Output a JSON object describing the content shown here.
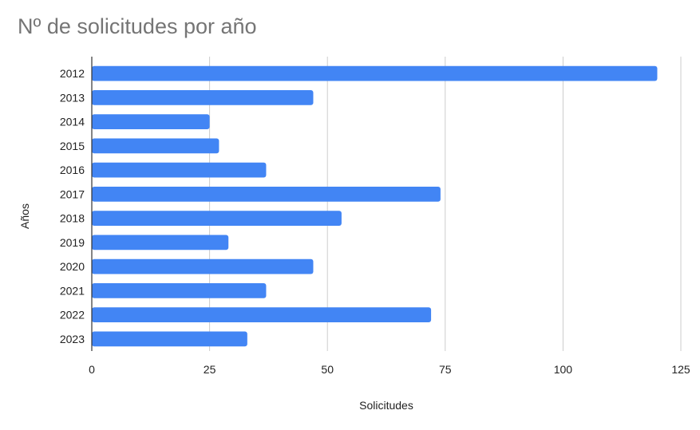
{
  "chart_data": {
    "type": "bar",
    "orientation": "horizontal",
    "title": "Nº de solicitudes por año",
    "xlabel": "Solicitudes",
    "ylabel": "Años",
    "categories": [
      "2012",
      "2013",
      "2014",
      "2015",
      "2016",
      "2017",
      "2018",
      "2019",
      "2020",
      "2021",
      "2022",
      "2023"
    ],
    "values": [
      120,
      47,
      25,
      27,
      37,
      74,
      53,
      29,
      47,
      37,
      72,
      33
    ],
    "xlim": [
      0,
      125
    ],
    "xticks": [
      0,
      25,
      50,
      75,
      100,
      125
    ],
    "grid": true,
    "legend": "none",
    "bar_color": "#4285F4"
  }
}
